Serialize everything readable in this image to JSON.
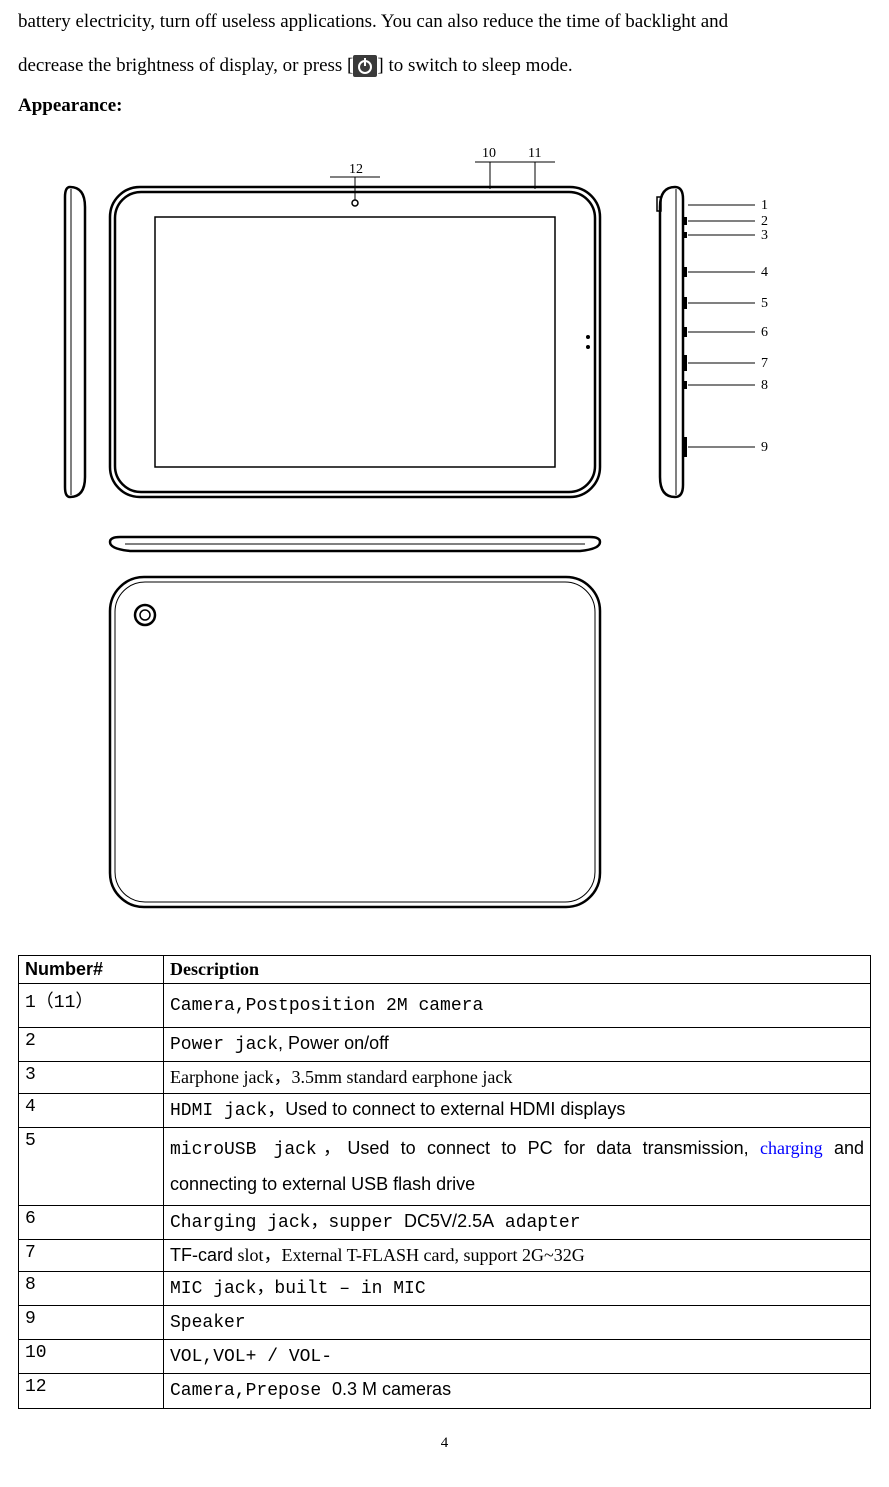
{
  "intro": {
    "line1": "battery electricity, turn off useless applications. You can also reduce the time of backlight and",
    "line2a": "decrease the brightness of display, or press [",
    "line2b": "] to switch to sleep mode."
  },
  "appearance_heading": "Appearance:",
  "diagram": {
    "labels": {
      "n1": "1",
      "n2": "2",
      "n3": "3",
      "n4": "4",
      "n5": "5",
      "n6": "6",
      "n7": "7",
      "n8": "8",
      "n9": "9",
      "n10": "10",
      "n11": "11",
      "n12": "12"
    }
  },
  "table": {
    "header_num": "Number#",
    "header_desc": "Description",
    "rows": [
      {
        "num": "1（11）",
        "parts": [
          {
            "text": "     Camera,",
            "cls": "mono"
          },
          {
            "text": "Postposition 2M camera",
            "cls": "mono"
          }
        ]
      },
      {
        "num": "2",
        "parts": [
          {
            "text": "Power jack",
            "cls": "mono"
          },
          {
            "text": ", ",
            "cls": "sans"
          },
          {
            "text": "Power on/off",
            "cls": "sans"
          }
        ]
      },
      {
        "num": "3",
        "parts": [
          {
            "text": "Earphone jack，3.5mm standard earphone jack",
            "cls": "serif"
          }
        ]
      },
      {
        "num": "4",
        "parts": [
          {
            "text": "HDMI jack",
            "cls": "mono"
          },
          {
            "text": "，Used to connect to external HDMI displays",
            "cls": "sans"
          }
        ]
      },
      {
        "num": "5",
        "parts": [
          {
            "text": "microUSB jack",
            "cls": "mono"
          },
          {
            "text": "，Used to connect to PC for data transmission, ",
            "cls": "sans"
          },
          {
            "text": "charging",
            "cls": "serif blue"
          },
          {
            "text": " and connecting to external USB flash drive",
            "cls": "sans"
          }
        ]
      },
      {
        "num": "6",
        "parts": [
          {
            "text": "Charging jack，supper ",
            "cls": "mono"
          },
          {
            "text": "DC5V/2.5A",
            "cls": "sans"
          },
          {
            "text": " adapter",
            "cls": "mono"
          }
        ]
      },
      {
        "num": "7",
        "parts": [
          {
            "text": "TF-card",
            "cls": "sans"
          },
          {
            "text": " slot，External T-FLASH card, support 2G~32G",
            "cls": "serif"
          }
        ]
      },
      {
        "num": "8",
        "parts": [
          {
            "text": "MIC jack，built – in MIC",
            "cls": "mono"
          }
        ]
      },
      {
        "num": "9",
        "parts": [
          {
            "text": "Speaker",
            "cls": "mono"
          }
        ]
      },
      {
        "num": "10",
        "parts": [
          {
            "text": "VOL,VOL+ / VOL-",
            "cls": "mono"
          }
        ]
      },
      {
        "num": "12",
        "parts": [
          {
            "text": "Camera,Prepose ",
            "cls": "mono"
          },
          {
            "text": "0.3 M cameras",
            "cls": "sans"
          }
        ]
      }
    ]
  },
  "page_number": "4"
}
